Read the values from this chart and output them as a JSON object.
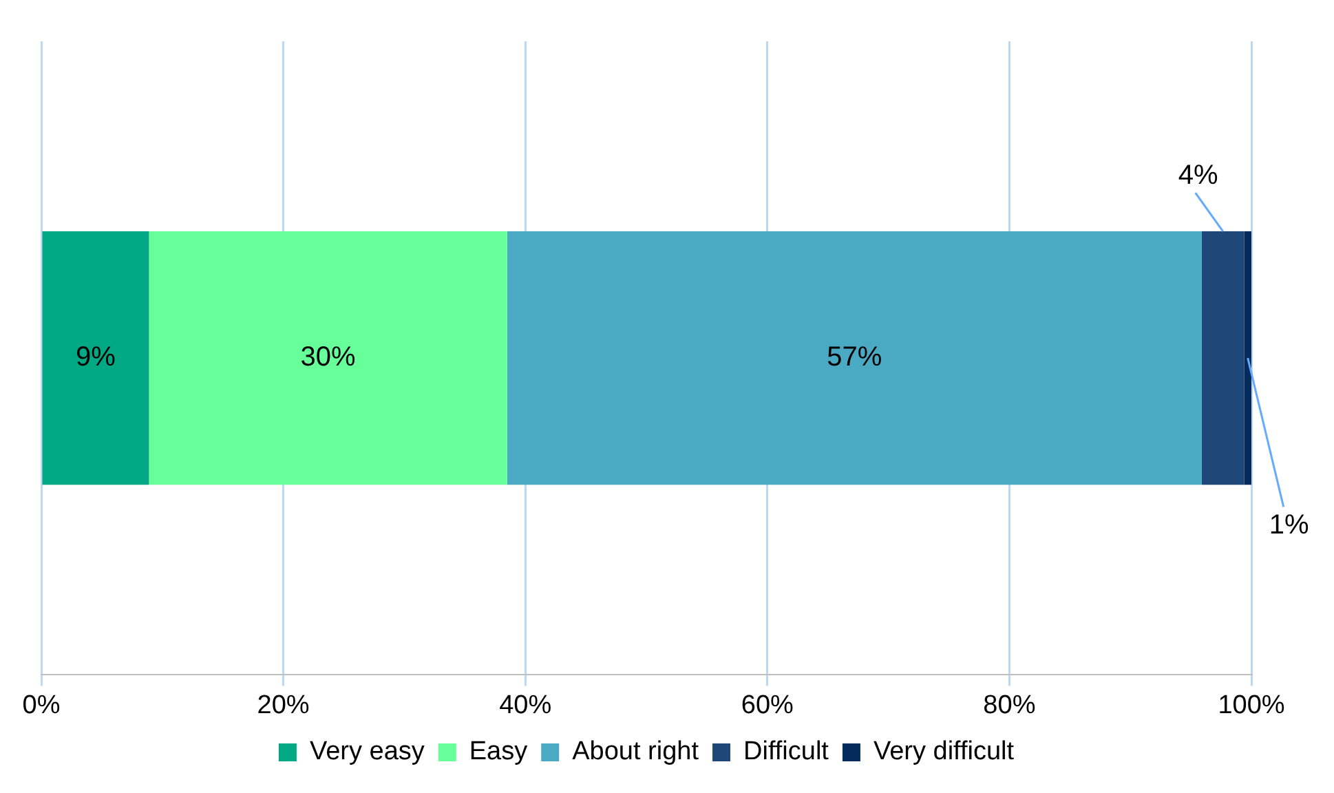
{
  "chart_data": {
    "type": "bar",
    "orientation": "horizontal",
    "stacked": true,
    "categories": [
      null
    ],
    "series": [
      {
        "name": "Very easy",
        "color": "#00a884",
        "values": [
          8.9
        ],
        "value_labels": [
          "9%"
        ]
      },
      {
        "name": "Easy",
        "color": "#66ff99",
        "values": [
          29.6
        ],
        "value_labels": [
          "30%"
        ]
      },
      {
        "name": "About right",
        "color": "#4aaac4",
        "values": [
          57.4
        ],
        "value_labels": [
          "57%"
        ]
      },
      {
        "name": "Difficult",
        "color": "#1f4878",
        "values": [
          3.5
        ],
        "value_labels": [
          "4%"
        ]
      },
      {
        "name": "Very difficult",
        "color": "#052a5c",
        "values": [
          0.6
        ],
        "value_labels": [
          "1%"
        ]
      }
    ],
    "xlim": [
      0,
      100
    ],
    "xticks": [
      {
        "value": 0,
        "label": "0%"
      },
      {
        "value": 20,
        "label": "20%"
      },
      {
        "value": 40,
        "label": "40%"
      },
      {
        "value": 60,
        "label": "60%"
      },
      {
        "value": 80,
        "label": "80%"
      },
      {
        "value": 100,
        "label": "100%"
      }
    ],
    "grid": "x",
    "legend": "bottom"
  }
}
